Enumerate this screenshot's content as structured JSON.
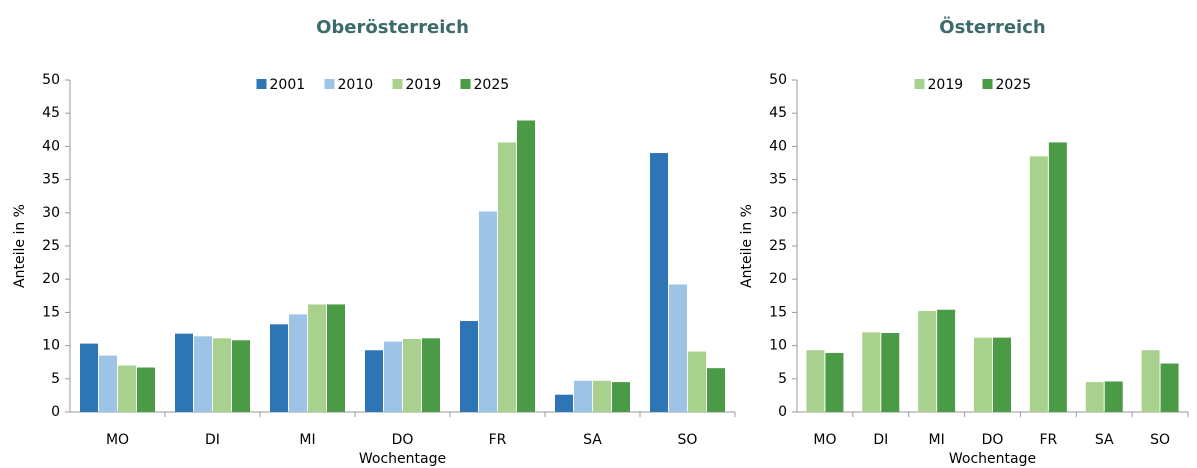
{
  "chart_data": [
    {
      "type": "bar",
      "title": "Oberösterreich",
      "x_label": "Wochentage",
      "y_label": "Anteile in %",
      "categories": [
        "MO",
        "DI",
        "MI",
        "DO",
        "FR",
        "SA",
        "SO"
      ],
      "series": [
        {
          "name": "2001",
          "color": "#2e75b6",
          "values": [
            10.3,
            11.8,
            13.2,
            9.3,
            13.7,
            2.6,
            39
          ]
        },
        {
          "name": "2010",
          "color": "#9dc3e6",
          "values": [
            8.5,
            11.4,
            14.7,
            10.6,
            30.2,
            4.7,
            19.2
          ]
        },
        {
          "name": "2019",
          "color": "#a9d18e",
          "values": [
            7.0,
            11.1,
            16.2,
            11.0,
            40.6,
            4.7,
            9.1
          ]
        },
        {
          "name": "2025",
          "color": "#4a9a46",
          "values": [
            6.7,
            10.8,
            16.2,
            11.1,
            43.9,
            4.5,
            6.6
          ]
        }
      ],
      "ylim": [
        0,
        50
      ],
      "yticks": [
        0,
        5,
        10,
        15,
        20,
        25,
        30,
        35,
        40,
        45,
        50
      ],
      "grid": false,
      "legend": "top"
    },
    {
      "type": "bar",
      "title": "Österreich",
      "x_label": "Wochentage",
      "y_label": "Anteile in %",
      "categories": [
        "MO",
        "DI",
        "MI",
        "DO",
        "FR",
        "SA",
        "SO"
      ],
      "series": [
        {
          "name": "2019",
          "color": "#a9d18e",
          "values": [
            9.3,
            12.0,
            15.2,
            11.2,
            38.5,
            4.5,
            9.3
          ]
        },
        {
          "name": "2025",
          "color": "#4a9a46",
          "values": [
            8.9,
            11.9,
            15.4,
            11.2,
            40.6,
            4.6,
            7.3
          ]
        }
      ],
      "ylim": [
        0,
        50
      ],
      "yticks": [
        0,
        5,
        10,
        15,
        20,
        25,
        30,
        35,
        40,
        45,
        50
      ],
      "grid": false,
      "legend": "top"
    }
  ]
}
